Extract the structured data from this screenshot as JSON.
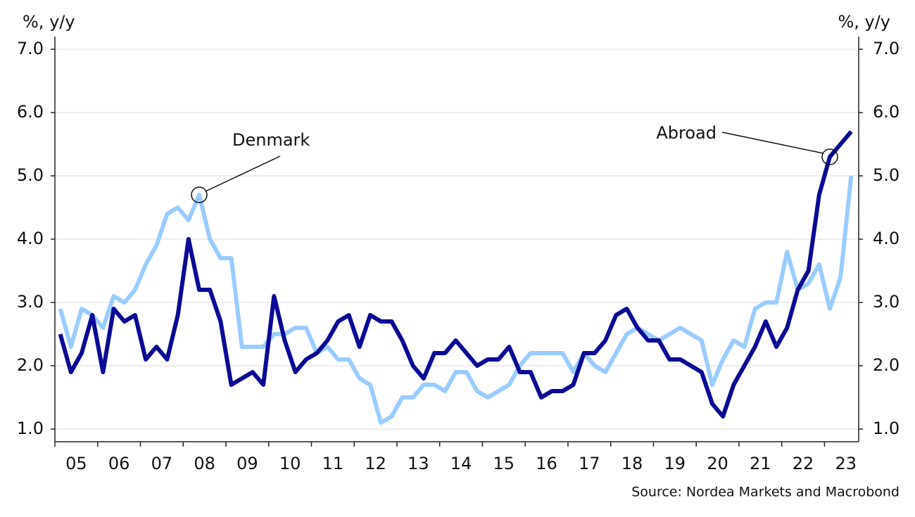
{
  "chart_data": {
    "type": "line",
    "y_label": "%, y/y",
    "y2_label": "%, y/y",
    "source": "Source: Nordea Markets and Macrobond",
    "annotations": [
      "Denmark",
      "Abroad"
    ],
    "x": [
      2005.125,
      2005.375,
      2005.625,
      2005.875,
      2006.125,
      2006.375,
      2006.625,
      2006.875,
      2007.125,
      2007.375,
      2007.625,
      2007.875,
      2008.125,
      2008.375,
      2008.625,
      2008.875,
      2009.125,
      2009.375,
      2009.625,
      2009.875,
      2010.125,
      2010.375,
      2010.625,
      2010.875,
      2011.125,
      2011.375,
      2011.625,
      2011.875,
      2012.125,
      2012.375,
      2012.625,
      2012.875,
      2013.125,
      2013.375,
      2013.625,
      2013.875,
      2014.125,
      2014.375,
      2014.625,
      2014.875,
      2015.125,
      2015.375,
      2015.625,
      2015.875,
      2016.125,
      2016.375,
      2016.625,
      2016.875,
      2017.125,
      2017.375,
      2017.625,
      2017.875,
      2018.125,
      2018.375,
      2018.625,
      2018.875,
      2019.125,
      2019.375,
      2019.625,
      2019.875,
      2020.125,
      2020.375,
      2020.625,
      2020.875,
      2021.125,
      2021.375,
      2021.625,
      2021.875,
      2022.125,
      2022.375,
      2022.625,
      2022.875,
      2023.125,
      2023.375,
      2023.625
    ],
    "series": [
      {
        "name": "Abroad",
        "color": "#0a0a96",
        "values": [
          2.5,
          1.9,
          2.2,
          2.8,
          1.9,
          2.9,
          2.7,
          2.8,
          2.1,
          2.3,
          2.1,
          2.8,
          4.0,
          3.2,
          3.2,
          2.7,
          1.7,
          1.8,
          1.9,
          1.7,
          3.1,
          2.4,
          1.9,
          2.1,
          2.2,
          2.4,
          2.7,
          2.8,
          2.3,
          2.8,
          2.7,
          2.7,
          2.4,
          2.0,
          1.8,
          2.2,
          2.2,
          2.4,
          2.2,
          2.0,
          2.1,
          2.1,
          2.3,
          1.9,
          1.9,
          1.5,
          1.6,
          1.6,
          1.7,
          2.2,
          2.2,
          2.4,
          2.8,
          2.9,
          2.6,
          2.4,
          2.4,
          2.1,
          2.1,
          2.0,
          1.9,
          1.4,
          1.2,
          1.7,
          2.0,
          2.3,
          2.7,
          2.3,
          2.6,
          3.2,
          3.5,
          4.7,
          5.3,
          5.5,
          5.7
        ]
      },
      {
        "name": "Denmark",
        "color": "#99ccff",
        "values": [
          2.9,
          2.3,
          2.9,
          2.8,
          2.6,
          3.1,
          3.0,
          3.2,
          3.6,
          3.9,
          4.4,
          4.5,
          4.3,
          4.7,
          4.0,
          3.7,
          3.7,
          2.3,
          2.3,
          2.3,
          2.5,
          2.5,
          2.6,
          2.6,
          2.2,
          2.3,
          2.1,
          2.1,
          1.8,
          1.7,
          1.1,
          1.2,
          1.5,
          1.5,
          1.7,
          1.7,
          1.6,
          1.9,
          1.9,
          1.6,
          1.5,
          1.6,
          1.7,
          2.0,
          2.2,
          2.2,
          2.2,
          2.2,
          1.9,
          2.2,
          2.0,
          1.9,
          2.2,
          2.5,
          2.6,
          2.5,
          2.4,
          2.5,
          2.6,
          2.5,
          2.4,
          1.7,
          2.1,
          2.4,
          2.3,
          2.9,
          3.0,
          3.0,
          3.8,
          3.2,
          3.3,
          3.6,
          2.9,
          3.4,
          5.0
        ]
      }
    ],
    "xlim": [
      2005,
      2023.8
    ],
    "xticks": [
      {
        "value": 2005,
        "label": "05"
      },
      {
        "value": 2006,
        "label": "06"
      },
      {
        "value": 2007,
        "label": "07"
      },
      {
        "value": 2008,
        "label": "08"
      },
      {
        "value": 2009,
        "label": "09"
      },
      {
        "value": 2010,
        "label": "10"
      },
      {
        "value": 2011,
        "label": "11"
      },
      {
        "value": 2012,
        "label": "12"
      },
      {
        "value": 2013,
        "label": "13"
      },
      {
        "value": 2014,
        "label": "14"
      },
      {
        "value": 2015,
        "label": "15"
      },
      {
        "value": 2016,
        "label": "16"
      },
      {
        "value": 2017,
        "label": "17"
      },
      {
        "value": 2018,
        "label": "18"
      },
      {
        "value": 2019,
        "label": "19"
      },
      {
        "value": 2020,
        "label": "20"
      },
      {
        "value": 2021,
        "label": "21"
      },
      {
        "value": 2022,
        "label": "22"
      },
      {
        "value": 2023,
        "label": "23"
      }
    ],
    "ylim": [
      0.8,
      7.2
    ],
    "yticks": [
      {
        "value": 1,
        "label": "1.0"
      },
      {
        "value": 2,
        "label": "2.0"
      },
      {
        "value": 3,
        "label": "3.0"
      },
      {
        "value": 4,
        "label": "4.0"
      },
      {
        "value": 5,
        "label": "5.0"
      },
      {
        "value": 6,
        "label": "6.0"
      },
      {
        "value": 7,
        "label": "7.0"
      }
    ],
    "y2lim": [
      0.8,
      7.2
    ],
    "y2ticks": [
      {
        "value": 1,
        "label": "1.0"
      },
      {
        "value": 2,
        "label": "2.0"
      },
      {
        "value": 3,
        "label": "3.0"
      },
      {
        "value": 4,
        "label": "4.0"
      },
      {
        "value": 5,
        "label": "5.0"
      },
      {
        "value": 6,
        "label": "6.0"
      },
      {
        "value": 7,
        "label": "7.0"
      }
    ],
    "grid": true
  }
}
